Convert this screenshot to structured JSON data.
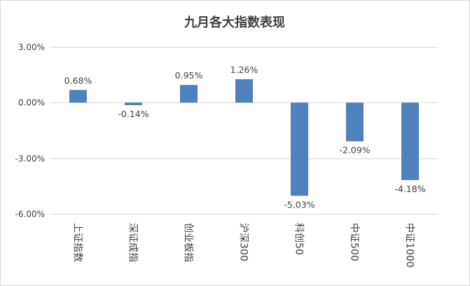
{
  "chart_data": {
    "type": "bar",
    "title": "九月各大指数表现",
    "categories": [
      "上证指数",
      "深证成指",
      "创业板指",
      "沪深300",
      "科创50",
      "中证500",
      "中证1000"
    ],
    "values": [
      0.68,
      -0.14,
      0.95,
      1.26,
      -5.03,
      -2.09,
      -4.18
    ],
    "value_labels": [
      "0.68%",
      "-0.14%",
      "0.95%",
      "1.26%",
      "-5.03%",
      "-2.09%",
      "-4.18%"
    ],
    "y_ticks": [
      3,
      0,
      -3,
      -6
    ],
    "y_tick_labels": [
      "3.00%",
      "0.00%",
      "-3.00%",
      "-6.00%"
    ],
    "ylim": [
      -6,
      3
    ],
    "grid": true,
    "legend": "none",
    "bar_color": "#4f81bd"
  }
}
